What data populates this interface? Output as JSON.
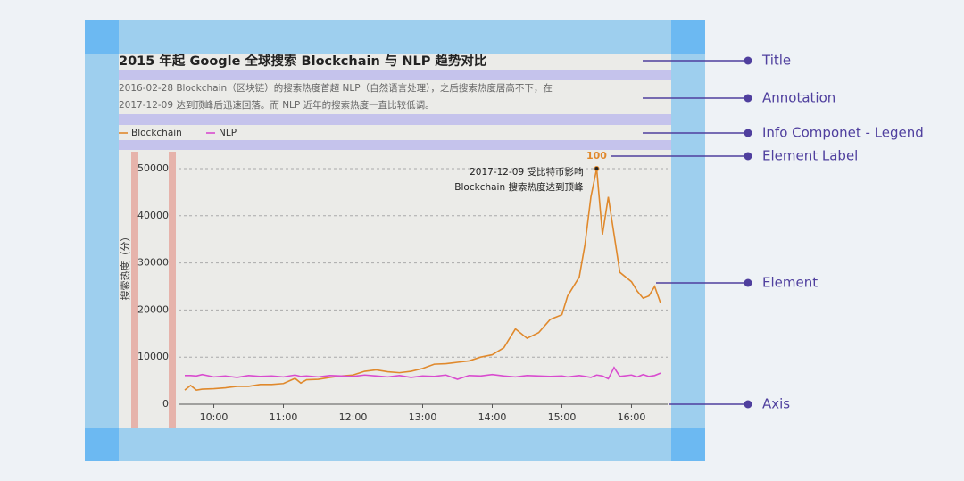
{
  "chart_data": {
    "type": "line",
    "title": "2015 年起 Google 全球搜索 Blockchain 与 NLP 趋势对比",
    "annotation": [
      "2016-02-28 Blockchain（区块链）的搜索热度首超 NLP（自然语言处理），之后搜索热度居高不下，在",
      "2017-12-09 达到顶峰后迅速回落。而 NLP 近年的搜索热度一直比较低调。"
    ],
    "ylabel": "搜索热度（分）",
    "peak_label": "100",
    "peak_note": [
      "2017-12-09 受比特币影响",
      "Blockchain 搜索热度达到顶峰"
    ],
    "x": [
      9.583,
      9.667,
      9.75,
      9.833,
      10,
      10.167,
      10.333,
      10.5,
      10.667,
      10.833,
      11,
      11.167,
      11.25,
      11.333,
      11.5,
      11.667,
      11.833,
      12,
      12.167,
      12.333,
      12.5,
      12.667,
      12.833,
      13,
      13.167,
      13.333,
      13.5,
      13.667,
      13.833,
      14,
      14.167,
      14.333,
      14.5,
      14.667,
      14.833,
      15,
      15.083,
      15.25,
      15.333,
      15.417,
      15.5,
      15.583,
      15.667,
      15.75,
      15.833,
      16,
      16.083,
      16.167,
      16.25,
      16.333,
      16.417
    ],
    "series": [
      {
        "name": "Blockchain",
        "color": "#e0892c",
        "values": [
          3000,
          4000,
          3000,
          3200,
          3300,
          3500,
          3800,
          3800,
          4200,
          4200,
          4400,
          5500,
          4500,
          5200,
          5300,
          5700,
          6000,
          6200,
          7000,
          7300,
          6900,
          6700,
          7000,
          7600,
          8500,
          8600,
          8900,
          9200,
          10000,
          10500,
          12000,
          16000,
          14000,
          15200,
          18000,
          19000,
          23000,
          27000,
          34000,
          44000,
          50000,
          36000,
          44000,
          36000,
          28000,
          26000,
          24000,
          22500,
          23000,
          25000,
          21500
        ]
      },
      {
        "name": "NLP",
        "color": "#d94ccf",
        "values": [
          6100,
          6100,
          6000,
          6300,
          5800,
          6000,
          5700,
          6100,
          5900,
          6000,
          5800,
          6200,
          5900,
          6000,
          5800,
          6100,
          6000,
          5900,
          6200,
          6000,
          5800,
          6100,
          5700,
          6000,
          5900,
          6200,
          5300,
          6100,
          6000,
          6300,
          6000,
          5800,
          6100,
          6000,
          5900,
          6000,
          5800,
          6100,
          5900,
          5700,
          6200,
          6000,
          5400,
          7800,
          5900,
          6200,
          5800,
          6300,
          5900,
          6100,
          6600
        ]
      }
    ],
    "xlim": [
      9.583,
      16.417
    ],
    "ylim": [
      0,
      50000
    ],
    "xticks": [
      {
        "value": 10,
        "label": "10:00"
      },
      {
        "value": 11,
        "label": "11:00"
      },
      {
        "value": 12,
        "label": "12:00"
      },
      {
        "value": 13,
        "label": "13:00"
      },
      {
        "value": 14,
        "label": "14:00"
      },
      {
        "value": 15,
        "label": "15:00"
      },
      {
        "value": 16,
        "label": "16:00"
      }
    ],
    "yticks": [
      0,
      10000,
      20000,
      30000,
      40000,
      50000
    ],
    "grid": true
  },
  "callouts": [
    "Title",
    "Annotation",
    "Info Componet - Legend",
    "Element Label",
    "Element",
    "Axis"
  ]
}
